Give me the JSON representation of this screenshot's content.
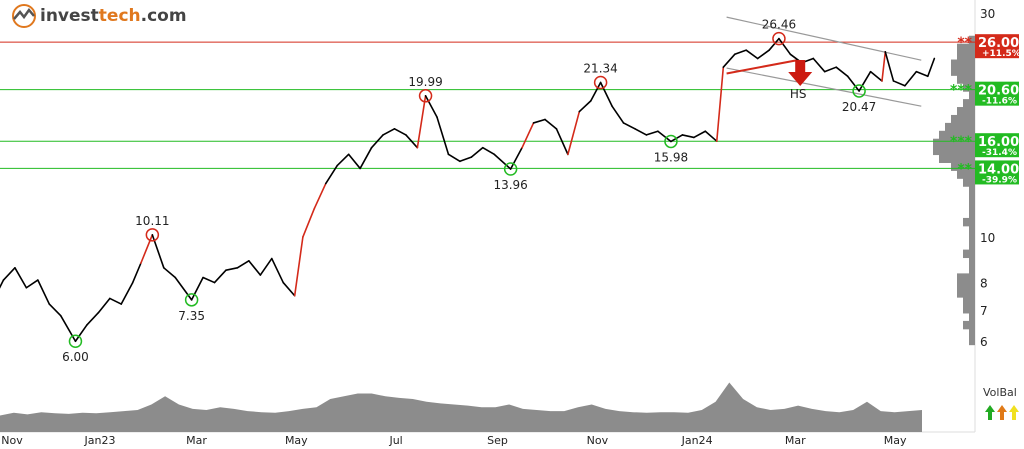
{
  "logo": {
    "brand_a": "invest",
    "brand_b": "tech",
    ".com": ".com",
    "suffix": ".com"
  },
  "chart_data": {
    "type": "line",
    "yscale": "log",
    "ylim": [
      5.8,
      31
    ],
    "yticks": [
      6,
      7,
      8,
      10,
      30
    ],
    "yticks_extra_partial": [
      "10"
    ],
    "xticks": [
      {
        "date": "2022-11-01",
        "label": "Nov"
      },
      {
        "date": "2023-01-01",
        "label": "Jan23"
      },
      {
        "date": "2023-03-01",
        "label": "Mar"
      },
      {
        "date": "2023-05-01",
        "label": "May"
      },
      {
        "date": "2023-07-01",
        "label": "Jul"
      },
      {
        "date": "2023-09-01",
        "label": "Sep"
      },
      {
        "date": "2023-11-01",
        "label": "Nov"
      },
      {
        "date": "2024-01-01",
        "label": "Jan24"
      },
      {
        "date": "2024-03-01",
        "label": "Mar"
      },
      {
        "date": "2024-05-01",
        "label": "May"
      }
    ],
    "price": [
      [
        "2022-10-30",
        7.6
      ],
      [
        "2022-11-03",
        8.1
      ],
      [
        "2022-11-10",
        8.6
      ],
      [
        "2022-11-17",
        7.8
      ],
      [
        "2022-11-24",
        8.1
      ],
      [
        "2022-12-01",
        7.2
      ],
      [
        "2022-12-08",
        6.8
      ],
      [
        "2022-12-17",
        6.0
      ],
      [
        "2022-12-24",
        6.5
      ],
      [
        "2022-12-31",
        6.9
      ],
      [
        "2023-01-07",
        7.4
      ],
      [
        "2023-01-14",
        7.2
      ],
      [
        "2023-01-21",
        8.0
      ],
      [
        "2023-01-26",
        8.8
      ],
      [
        "2023-02-02",
        10.11
      ],
      [
        "2023-02-09",
        8.6
      ],
      [
        "2023-02-16",
        8.2
      ],
      [
        "2023-02-26",
        7.35
      ],
      [
        "2023-03-05",
        8.2
      ],
      [
        "2023-03-12",
        8.0
      ],
      [
        "2023-03-19",
        8.5
      ],
      [
        "2023-03-26",
        8.6
      ],
      [
        "2023-04-02",
        8.9
      ],
      [
        "2023-04-09",
        8.3
      ],
      [
        "2023-04-16",
        9.0
      ],
      [
        "2023-04-23",
        8.0
      ],
      [
        "2023-04-30",
        7.5
      ],
      [
        "2023-05-05",
        10.0
      ],
      [
        "2023-05-12",
        11.5
      ],
      [
        "2023-05-19",
        13.0
      ],
      [
        "2023-05-26",
        14.2
      ],
      [
        "2023-06-02",
        15.0
      ],
      [
        "2023-06-09",
        14.0
      ],
      [
        "2023-06-16",
        15.5
      ],
      [
        "2023-06-23",
        16.5
      ],
      [
        "2023-06-30",
        17.0
      ],
      [
        "2023-07-07",
        16.5
      ],
      [
        "2023-07-14",
        15.5
      ],
      [
        "2023-07-19",
        19.99
      ],
      [
        "2023-07-26",
        18.0
      ],
      [
        "2023-08-02",
        15.0
      ],
      [
        "2023-08-09",
        14.5
      ],
      [
        "2023-08-16",
        14.8
      ],
      [
        "2023-08-23",
        15.5
      ],
      [
        "2023-08-30",
        15.0
      ],
      [
        "2023-09-09",
        13.96
      ],
      [
        "2023-09-16",
        15.5
      ],
      [
        "2023-09-23",
        17.5
      ],
      [
        "2023-09-30",
        17.8
      ],
      [
        "2023-10-07",
        17.0
      ],
      [
        "2023-10-14",
        15.0
      ],
      [
        "2023-10-21",
        18.5
      ],
      [
        "2023-10-28",
        19.5
      ],
      [
        "2023-11-03",
        21.34
      ],
      [
        "2023-11-10",
        19.0
      ],
      [
        "2023-11-17",
        17.5
      ],
      [
        "2023-11-24",
        17.0
      ],
      [
        "2023-12-01",
        16.5
      ],
      [
        "2023-12-08",
        16.8
      ],
      [
        "2023-12-16",
        15.98
      ],
      [
        "2023-12-23",
        16.5
      ],
      [
        "2023-12-30",
        16.3
      ],
      [
        "2024-01-06",
        16.8
      ],
      [
        "2024-01-13",
        16.0
      ],
      [
        "2024-01-17",
        23.0
      ],
      [
        "2024-01-24",
        24.5
      ],
      [
        "2024-01-31",
        25.0
      ],
      [
        "2024-02-07",
        24.0
      ],
      [
        "2024-02-14",
        25.0
      ],
      [
        "2024-02-20",
        26.46
      ],
      [
        "2024-02-27",
        24.5
      ],
      [
        "2024-03-05",
        23.5
      ],
      [
        "2024-03-12",
        24.0
      ],
      [
        "2024-03-19",
        22.5
      ],
      [
        "2024-03-26",
        23.0
      ],
      [
        "2024-04-02",
        22.0
      ],
      [
        "2024-04-09",
        20.47
      ],
      [
        "2024-04-16",
        22.5
      ],
      [
        "2024-04-23",
        21.5
      ],
      [
        "2024-04-25",
        24.8
      ],
      [
        "2024-04-30",
        21.5
      ],
      [
        "2024-05-07",
        21.0
      ],
      [
        "2024-05-14",
        22.5
      ],
      [
        "2024-05-21",
        22.0
      ],
      [
        "2024-05-25",
        24.0
      ]
    ],
    "extremes": [
      {
        "date": "2022-12-17",
        "value": 6.0,
        "label": "6.00",
        "kind": "bottom"
      },
      {
        "date": "2023-02-02",
        "value": 10.11,
        "label": "10.11",
        "kind": "top"
      },
      {
        "date": "2023-02-26",
        "value": 7.35,
        "label": "7.35",
        "kind": "bottom"
      },
      {
        "date": "2023-07-19",
        "value": 19.99,
        "label": "19.99",
        "kind": "top"
      },
      {
        "date": "2023-09-09",
        "value": 13.96,
        "label": "13.96",
        "kind": "bottom"
      },
      {
        "date": "2023-11-03",
        "value": 21.34,
        "label": "21.34",
        "kind": "top"
      },
      {
        "date": "2023-12-16",
        "value": 15.98,
        "label": "15.98",
        "kind": "bottom"
      },
      {
        "date": "2024-02-20",
        "value": 26.46,
        "label": "26.46",
        "kind": "top"
      },
      {
        "date": "2024-04-09",
        "value": 20.47,
        "label": "20.47",
        "kind": "bottom"
      }
    ],
    "levels": [
      {
        "value": 26.0,
        "label": "26.00",
        "pct": "+11.5%",
        "type": "resistance",
        "stars": "**",
        "color": "#d42a1a"
      },
      {
        "value": 20.6,
        "label": "20.60",
        "pct": "-11.6%",
        "type": "support",
        "stars": "***",
        "color": "#22bb22"
      },
      {
        "value": 16.0,
        "label": "16.00",
        "pct": "-31.4%",
        "type": "support",
        "stars": "***",
        "color": "#22bb22"
      },
      {
        "value": 14.0,
        "label": "14.00",
        "pct": "-39.9%",
        "type": "support",
        "stars": "**",
        "color": "#22bb22"
      }
    ],
    "channel": {
      "upper": [
        [
          "2024-01-19",
          29.4
        ],
        [
          "2024-05-17",
          23.8
        ]
      ],
      "lower": [
        [
          "2024-01-19",
          22.9
        ],
        [
          "2024-05-17",
          19.0
        ]
      ]
    },
    "hs_neckline": [
      [
        "2024-01-19",
        22.3
      ],
      [
        "2024-03-02",
        23.8
      ]
    ],
    "pattern": {
      "label": "HS",
      "date": "2024-03-04",
      "signal": "sell"
    },
    "volume": [
      3,
      3.5,
      3.2,
      3.6,
      3.4,
      3.3,
      3.5,
      3.4,
      3.6,
      3.8,
      4,
      5,
      6.5,
      5,
      4.2,
      4,
      4.5,
      4.2,
      3.8,
      3.6,
      3.5,
      3.8,
      4.2,
      4.5,
      6,
      6.5,
      7,
      7,
      6.5,
      6.2,
      6,
      5.5,
      5.2,
      5,
      4.8,
      4.5,
      4.5,
      5,
      4.2,
      4,
      3.8,
      3.8,
      4.5,
      5,
      4.2,
      3.8,
      3.6,
      3.5,
      3.6,
      3.6,
      3.5,
      4,
      5.5,
      9,
      6,
      4.5,
      4,
      4.2,
      4.8,
      4.2,
      3.8,
      3.6,
      4,
      5.5,
      3.8,
      3.6,
      3.8,
      4
    ],
    "volume_profile": [
      0,
      0,
      1,
      3,
      3,
      4,
      4,
      3,
      2,
      1,
      2,
      3,
      4,
      5,
      6,
      7,
      7,
      6,
      4,
      3,
      2,
      1,
      1,
      1,
      1,
      2,
      1,
      1,
      1,
      2,
      1,
      1,
      3,
      3,
      3,
      2,
      2,
      1,
      2,
      1,
      1
    ],
    "colors": {
      "line": "#000000",
      "rising": "#d42a1a",
      "falling": "#22bb22",
      "volume": "#8c8c8c",
      "channel": "#999999"
    },
    "volbal": {
      "label": "VolBal",
      "arrows": [
        {
          "color": "#22aa22"
        },
        {
          "color": "#e07a18"
        },
        {
          "color": "#f0e020"
        }
      ]
    }
  }
}
